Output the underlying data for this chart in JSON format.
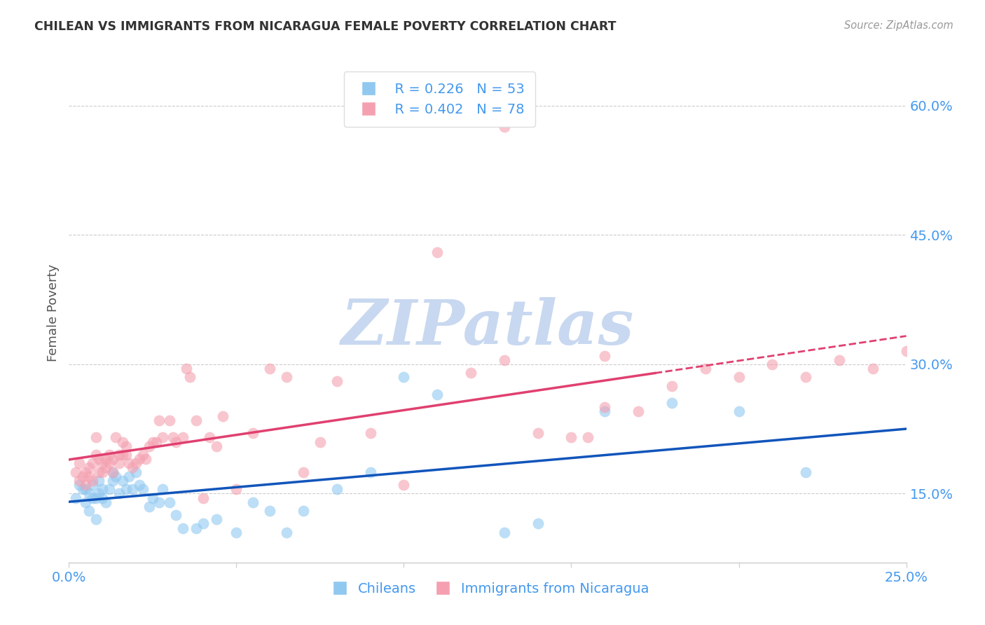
{
  "title": "CHILEAN VS IMMIGRANTS FROM NICARAGUA FEMALE POVERTY CORRELATION CHART",
  "source": "Source: ZipAtlas.com",
  "ylabel": "Female Poverty",
  "yticks": [
    0.15,
    0.3,
    0.45,
    0.6
  ],
  "ytick_labels": [
    "15.0%",
    "30.0%",
    "45.0%",
    "60.0%"
  ],
  "xticks": [
    0.0,
    0.05,
    0.1,
    0.15,
    0.2,
    0.25
  ],
  "xtick_labels": [
    "0.0%",
    "",
    "",
    "",
    "",
    "25.0%"
  ],
  "xlim": [
    0.0,
    0.25
  ],
  "ylim": [
    0.07,
    0.65
  ],
  "legend_r1": "R = 0.226",
  "legend_n1": "N = 53",
  "legend_r2": "R = 0.402",
  "legend_n2": "N = 78",
  "color_blue": "#90C8F0",
  "color_pink": "#F4A0B0",
  "color_blue_line": "#1155BB",
  "color_pink_line": "#E04070",
  "axis_color": "#4499EE",
  "grid_color": "#CCCCCC",
  "watermark": "ZIPatlas",
  "watermark_color": "#C8D8F0",
  "title_color": "#333333",
  "source_color": "#999999",
  "chileans_x": [
    0.002,
    0.003,
    0.004,
    0.005,
    0.005,
    0.006,
    0.006,
    0.007,
    0.007,
    0.008,
    0.008,
    0.009,
    0.009,
    0.01,
    0.01,
    0.011,
    0.012,
    0.013,
    0.013,
    0.014,
    0.015,
    0.016,
    0.017,
    0.018,
    0.019,
    0.02,
    0.021,
    0.022,
    0.024,
    0.025,
    0.027,
    0.028,
    0.03,
    0.032,
    0.034,
    0.038,
    0.04,
    0.044,
    0.05,
    0.055,
    0.06,
    0.065,
    0.07,
    0.08,
    0.09,
    0.1,
    0.11,
    0.13,
    0.14,
    0.16,
    0.18,
    0.2,
    0.22
  ],
  "chileans_y": [
    0.145,
    0.16,
    0.155,
    0.14,
    0.155,
    0.13,
    0.15,
    0.145,
    0.16,
    0.12,
    0.145,
    0.15,
    0.165,
    0.155,
    0.145,
    0.14,
    0.155,
    0.165,
    0.175,
    0.17,
    0.15,
    0.165,
    0.155,
    0.17,
    0.155,
    0.175,
    0.16,
    0.155,
    0.135,
    0.145,
    0.14,
    0.155,
    0.14,
    0.125,
    0.11,
    0.11,
    0.115,
    0.12,
    0.105,
    0.14,
    0.13,
    0.105,
    0.13,
    0.155,
    0.175,
    0.285,
    0.265,
    0.105,
    0.115,
    0.245,
    0.255,
    0.245,
    0.175
  ],
  "nicaragua_x": [
    0.002,
    0.003,
    0.003,
    0.004,
    0.005,
    0.005,
    0.006,
    0.006,
    0.007,
    0.007,
    0.008,
    0.008,
    0.009,
    0.009,
    0.01,
    0.01,
    0.011,
    0.011,
    0.012,
    0.012,
    0.013,
    0.013,
    0.014,
    0.015,
    0.015,
    0.016,
    0.016,
    0.017,
    0.017,
    0.018,
    0.019,
    0.02,
    0.021,
    0.022,
    0.023,
    0.024,
    0.025,
    0.026,
    0.027,
    0.028,
    0.03,
    0.031,
    0.032,
    0.034,
    0.035,
    0.036,
    0.038,
    0.04,
    0.042,
    0.044,
    0.046,
    0.05,
    0.055,
    0.06,
    0.065,
    0.07,
    0.075,
    0.08,
    0.09,
    0.1,
    0.11,
    0.12,
    0.13,
    0.14,
    0.15,
    0.155,
    0.16,
    0.17,
    0.18,
    0.19,
    0.2,
    0.21,
    0.22,
    0.23,
    0.24,
    0.25,
    0.13,
    0.16
  ],
  "nicaragua_y": [
    0.175,
    0.165,
    0.185,
    0.17,
    0.16,
    0.175,
    0.17,
    0.18,
    0.185,
    0.165,
    0.195,
    0.215,
    0.175,
    0.19,
    0.185,
    0.175,
    0.19,
    0.18,
    0.195,
    0.185,
    0.175,
    0.19,
    0.215,
    0.195,
    0.185,
    0.21,
    0.195,
    0.195,
    0.205,
    0.185,
    0.18,
    0.185,
    0.19,
    0.195,
    0.19,
    0.205,
    0.21,
    0.21,
    0.235,
    0.215,
    0.235,
    0.215,
    0.21,
    0.215,
    0.295,
    0.285,
    0.235,
    0.145,
    0.215,
    0.205,
    0.24,
    0.155,
    0.22,
    0.295,
    0.285,
    0.175,
    0.21,
    0.28,
    0.22,
    0.16,
    0.43,
    0.29,
    0.575,
    0.22,
    0.215,
    0.215,
    0.25,
    0.245,
    0.275,
    0.295,
    0.285,
    0.3,
    0.285,
    0.305,
    0.295,
    0.315,
    0.305,
    0.31
  ]
}
